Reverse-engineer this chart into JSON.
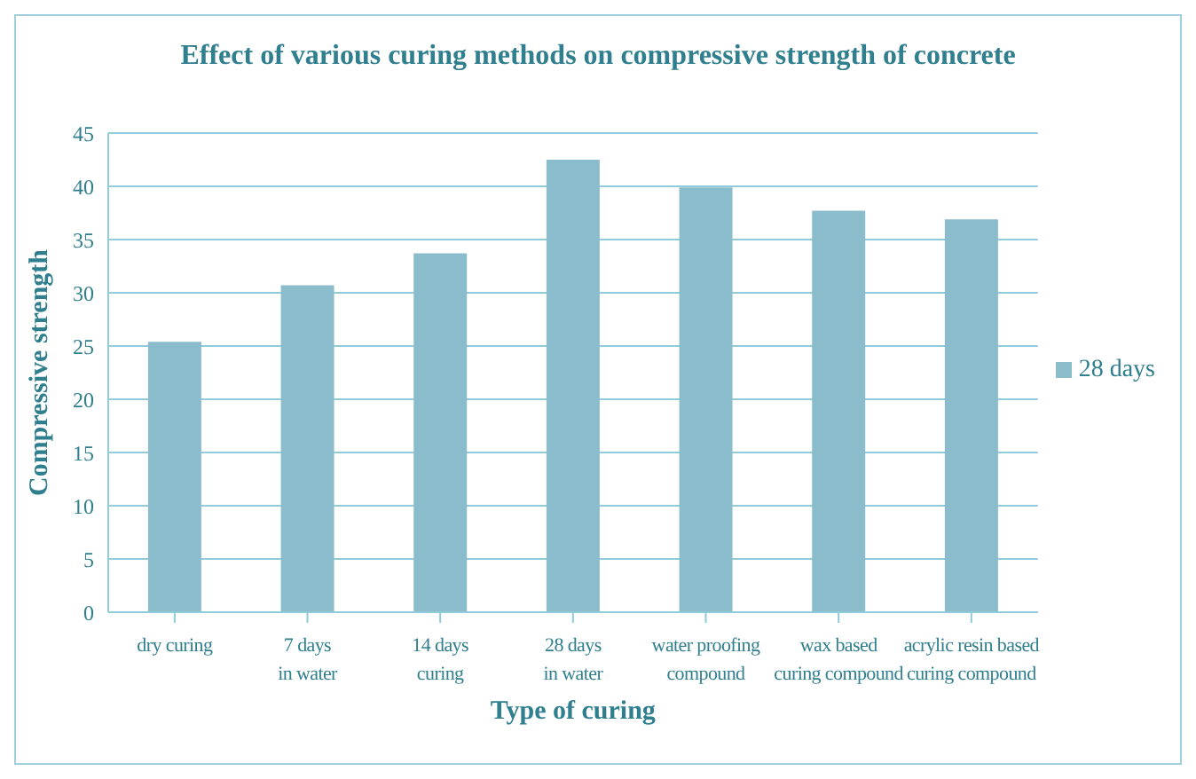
{
  "chart_data": {
    "type": "bar",
    "title": "Effect of various curing methods on compressive strength of concrete",
    "xlabel": "Type of curing",
    "ylabel": "Compressive strength",
    "categories": [
      "dry curing",
      "7 days\nin water",
      "14 days\ncuring",
      "28 days\nin water",
      "water proofing\ncompound",
      "wax based\ncuring compound",
      "acrylic resin based\ncuring compound"
    ],
    "series": [
      {
        "name": "28 days",
        "color": "#8bbccb",
        "values": [
          25.4,
          30.7,
          33.7,
          42.5,
          39.9,
          37.7,
          36.9
        ]
      }
    ],
    "ylim": [
      0,
      45
    ],
    "yticks": [
      0,
      5,
      10,
      15,
      20,
      25,
      30,
      35,
      40,
      45
    ],
    "grid": "y",
    "legend": "right"
  }
}
